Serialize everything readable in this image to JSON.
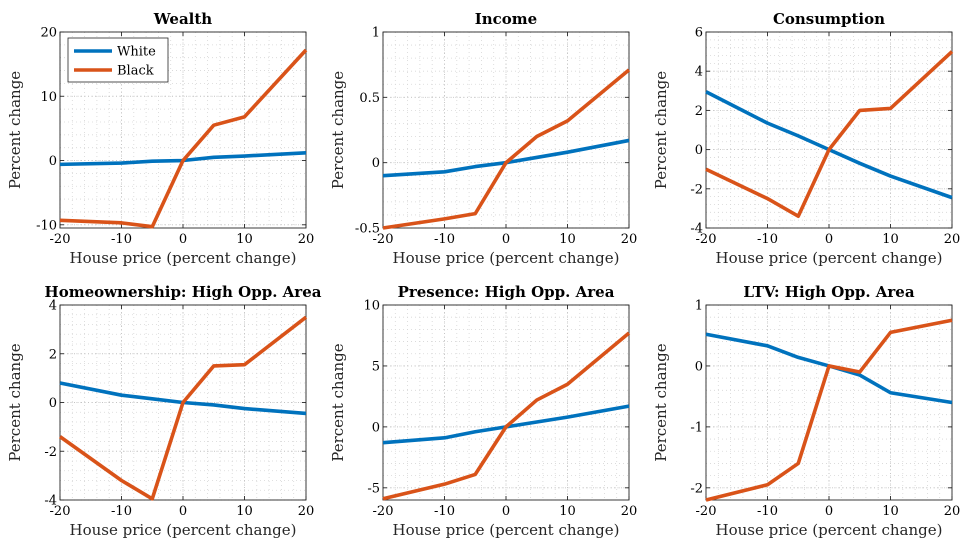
{
  "colors": {
    "white_series": "#0072bd",
    "black_series": "#d95319"
  },
  "legend": {
    "entries": [
      "White",
      "Black"
    ],
    "placement": "top-left",
    "panel": 0
  },
  "chart_data": [
    {
      "type": "line",
      "title": "Wealth",
      "xlabel": "House price (percent change)",
      "ylabel": "Percent change",
      "x": [
        -20,
        -10,
        -5,
        0,
        5,
        10,
        20
      ],
      "xlim": [
        -20,
        20
      ],
      "xticks": [
        -20,
        -10,
        0,
        10,
        20
      ],
      "ylim": [
        -10.5,
        20
      ],
      "yticks": [
        -10,
        0,
        10,
        20
      ],
      "grid": "minor-dotted",
      "series": [
        {
          "name": "White",
          "values": [
            -0.6,
            -0.4,
            -0.1,
            0,
            0.5,
            0.7,
            1.2
          ]
        },
        {
          "name": "Black",
          "values": [
            -9.3,
            -9.7,
            -10.3,
            0,
            5.5,
            6.8,
            17.2
          ]
        }
      ]
    },
    {
      "type": "line",
      "title": "Income",
      "xlabel": "House price (percent change)",
      "ylabel": "Percent change",
      "x": [
        -20,
        -10,
        -5,
        0,
        5,
        10,
        20
      ],
      "xlim": [
        -20,
        20
      ],
      "xticks": [
        -20,
        -10,
        0,
        10,
        20
      ],
      "ylim": [
        -0.5,
        1
      ],
      "yticks": [
        -0.5,
        0,
        0.5,
        1
      ],
      "grid": "minor-dotted",
      "series": [
        {
          "name": "White",
          "values": [
            -0.1,
            -0.07,
            -0.03,
            0,
            0.04,
            0.08,
            0.17
          ]
        },
        {
          "name": "Black",
          "values": [
            -0.5,
            -0.43,
            -0.39,
            0,
            0.2,
            0.32,
            0.71
          ]
        }
      ]
    },
    {
      "type": "line",
      "title": "Consumption",
      "xlabel": "House price (percent change)",
      "ylabel": "Percent change",
      "x": [
        -20,
        -10,
        -5,
        0,
        5,
        10,
        20
      ],
      "xlim": [
        -20,
        20
      ],
      "xticks": [
        -20,
        -10,
        0,
        10,
        20
      ],
      "ylim": [
        -4,
        6
      ],
      "yticks": [
        -4,
        -2,
        0,
        2,
        4,
        6
      ],
      "grid": "minor-dotted",
      "series": [
        {
          "name": "White",
          "values": [
            2.95,
            1.35,
            0.7,
            0,
            -0.7,
            -1.35,
            -2.45
          ]
        },
        {
          "name": "Black",
          "values": [
            -1.0,
            -2.5,
            -3.4,
            0,
            2.0,
            2.1,
            5.0
          ]
        }
      ]
    },
    {
      "type": "line",
      "title": "Homeownership: High Opp. Area",
      "xlabel": "House price (percent change)",
      "ylabel": "Percent change",
      "x": [
        -20,
        -10,
        -5,
        0,
        5,
        10,
        20
      ],
      "xlim": [
        -20,
        20
      ],
      "xticks": [
        -20,
        -10,
        0,
        10,
        20
      ],
      "ylim": [
        -4,
        4
      ],
      "yticks": [
        -4,
        -2,
        0,
        2,
        4
      ],
      "grid": "minor-dotted",
      "series": [
        {
          "name": "White",
          "values": [
            0.8,
            0.3,
            0.15,
            0,
            -0.1,
            -0.25,
            -0.45
          ]
        },
        {
          "name": "Black",
          "values": [
            -1.4,
            -3.2,
            -3.95,
            0,
            1.5,
            1.55,
            3.5
          ]
        }
      ]
    },
    {
      "type": "line",
      "title": "Presence: High Opp. Area",
      "xlabel": "House price (percent change)",
      "ylabel": "Percent change",
      "x": [
        -20,
        -10,
        -5,
        0,
        5,
        10,
        20
      ],
      "xlim": [
        -20,
        20
      ],
      "xticks": [
        -20,
        -10,
        0,
        10,
        20
      ],
      "ylim": [
        -6,
        10
      ],
      "yticks": [
        -5,
        0,
        5,
        10
      ],
      "grid": "minor-dotted",
      "series": [
        {
          "name": "White",
          "values": [
            -1.3,
            -0.9,
            -0.4,
            0,
            0.4,
            0.8,
            1.7
          ]
        },
        {
          "name": "Black",
          "values": [
            -5.9,
            -4.7,
            -3.9,
            0,
            2.2,
            3.5,
            7.7
          ]
        }
      ]
    },
    {
      "type": "line",
      "title": "LTV: High Opp. Area",
      "xlabel": "House price (percent change)",
      "ylabel": "Percent change",
      "x": [
        -20,
        -10,
        -5,
        0,
        5,
        10,
        20
      ],
      "xlim": [
        -20,
        20
      ],
      "xticks": [
        -20,
        -10,
        0,
        10,
        20
      ],
      "ylim": [
        -2.2,
        1
      ],
      "yticks": [
        -2,
        -1,
        0,
        1
      ],
      "grid": "minor-dotted",
      "series": [
        {
          "name": "White",
          "values": [
            0.52,
            0.33,
            0.14,
            0,
            -0.15,
            -0.44,
            -0.6
          ]
        },
        {
          "name": "Black",
          "values": [
            -2.2,
            -1.95,
            -1.6,
            0,
            -0.1,
            0.55,
            0.75
          ]
        }
      ]
    }
  ]
}
